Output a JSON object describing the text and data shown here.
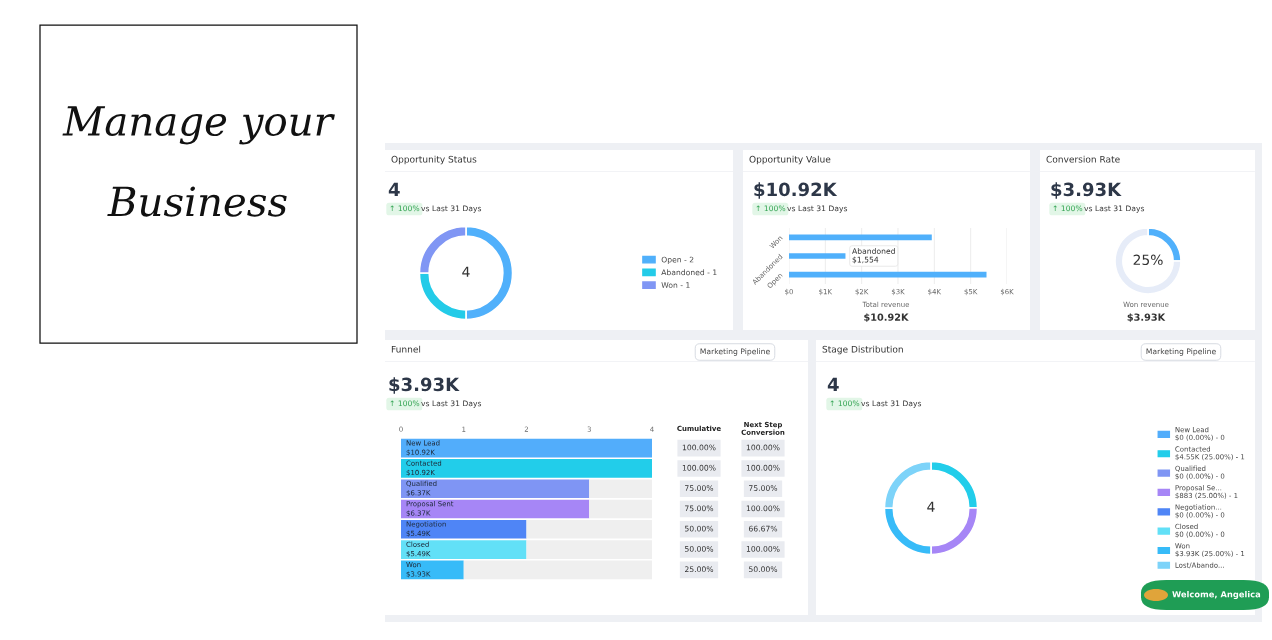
{
  "chart_data": [
    {
      "type": "donut",
      "title": "Opportunity Status",
      "categories": [
        "Open - 2",
        "Abandoned - 1",
        "Won - 1"
      ],
      "values": [
        50,
        25,
        25
      ],
      "colors": [
        "#50b0fb",
        "#23cbe8",
        "#8096f4"
      ],
      "legend": "right",
      "annotations": [
        "4",
        "↑ 100%",
        "vs Last 31 Days",
        "4"
      ]
    },
    {
      "type": "bar",
      "orientation": "horizontal",
      "title": "Opportunity Value",
      "categories": [
        "Won",
        "Abandoned",
        "Open"
      ],
      "values": [
        3930,
        1554,
        5436
      ],
      "color": "#50b0fb",
      "value_labels": [
        null,
        "$1,554",
        null
      ],
      "xlim": [
        0,
        6000
      ],
      "xticks": [
        {
          "value": 0,
          "label": "$0"
        },
        {
          "value": 1000,
          "label": "$1K"
        },
        {
          "value": 2000,
          "label": "$2K"
        },
        {
          "value": 3000,
          "label": "$3K"
        },
        {
          "value": 4000,
          "label": "$4K"
        },
        {
          "value": 5000,
          "label": "$5K"
        },
        {
          "value": 6000,
          "label": "$6K"
        }
      ],
      "grid": "x",
      "annotations": [
        "$10.92K",
        "↑ 100%",
        "vs Last 31 Days",
        "Total revenue",
        "$10.92K"
      ]
    },
    {
      "type": "donut",
      "title": "Conversion Rate",
      "categories": [
        null,
        null
      ],
      "values": [
        25,
        75
      ],
      "colors": [
        "#50b0fb",
        "#e6ecf8"
      ],
      "annotations": [
        "$3.93K",
        "↑ 100%",
        "vs Last 31 Days",
        "25%",
        "Won revenue",
        "$3.93K"
      ]
    },
    {
      "type": "bar",
      "orientation": "horizontal",
      "stacked": true,
      "title": "Funnel",
      "categories": [
        "New Lead\n$10.92K",
        "Contacted\n$10.92K",
        "Qualified\n$6.37K",
        "Proposal Sent\n$6.37K",
        "Negotiation\n$5.49K",
        "Closed\n$5.49K",
        "Won\n$3.93K"
      ],
      "series": [
        {
          "colors": [
            "#52adfb",
            "#22cdea",
            "#7f95f4",
            "#a686f6",
            "#4f85f6",
            "#62e0f7",
            "#37bbf8"
          ],
          "values": [
            4,
            4,
            3,
            3,
            2,
            2,
            1
          ]
        },
        {
          "color": "#efefef",
          "values": [
            0,
            0,
            1,
            1,
            2,
            2,
            3
          ]
        }
      ],
      "xlim": [
        0,
        4
      ],
      "xticks": [
        0,
        1,
        2,
        3,
        4
      ],
      "annotations": [
        "$3.93K",
        "↑ 100%",
        "vs Last 31 Days",
        "Marketing Pipeline",
        "Cumulative",
        "100.00%",
        "100.00%",
        "75.00%",
        "75.00%",
        "50.00%",
        "50.00%",
        "25.00%",
        "Next Step\nConversion",
        "100.00%",
        "100.00%",
        "75.00%",
        "100.00%",
        "66.67%",
        "100.00%",
        "50.00%"
      ]
    },
    {
      "type": "donut",
      "title": "Stage Distribution",
      "categories": [
        "New Lead\n$0 (0.00%) - 0",
        "Contacted\n$4.55K (25.00%) - 1",
        "Qualified\n$0 (0.00%) - 0",
        "Proposal Se...\n$883 (25.00%) - 1",
        "Negotiation...\n$0 (0.00%) - 0",
        "Closed\n$0 (0.00%) - 0",
        "Won\n$3.93K (25.00%) - 1",
        "Lost/Abando..."
      ],
      "values": [
        0,
        25,
        0,
        25,
        0,
        0,
        25,
        25
      ],
      "colors": [
        "#52adfb",
        "#22cdea",
        "#7f95f4",
        "#a686f6",
        "#4f85f6",
        "#62e0f7",
        "#37bbf8",
        "#7dd3f9"
      ],
      "legend": "right",
      "annotations": [
        "4",
        "↑ 100%",
        "vs Last 31 Days",
        "Marketing Pipeline",
        "4",
        "Manage your",
        "Business",
        "Welcome, Angelica"
      ]
    }
  ]
}
